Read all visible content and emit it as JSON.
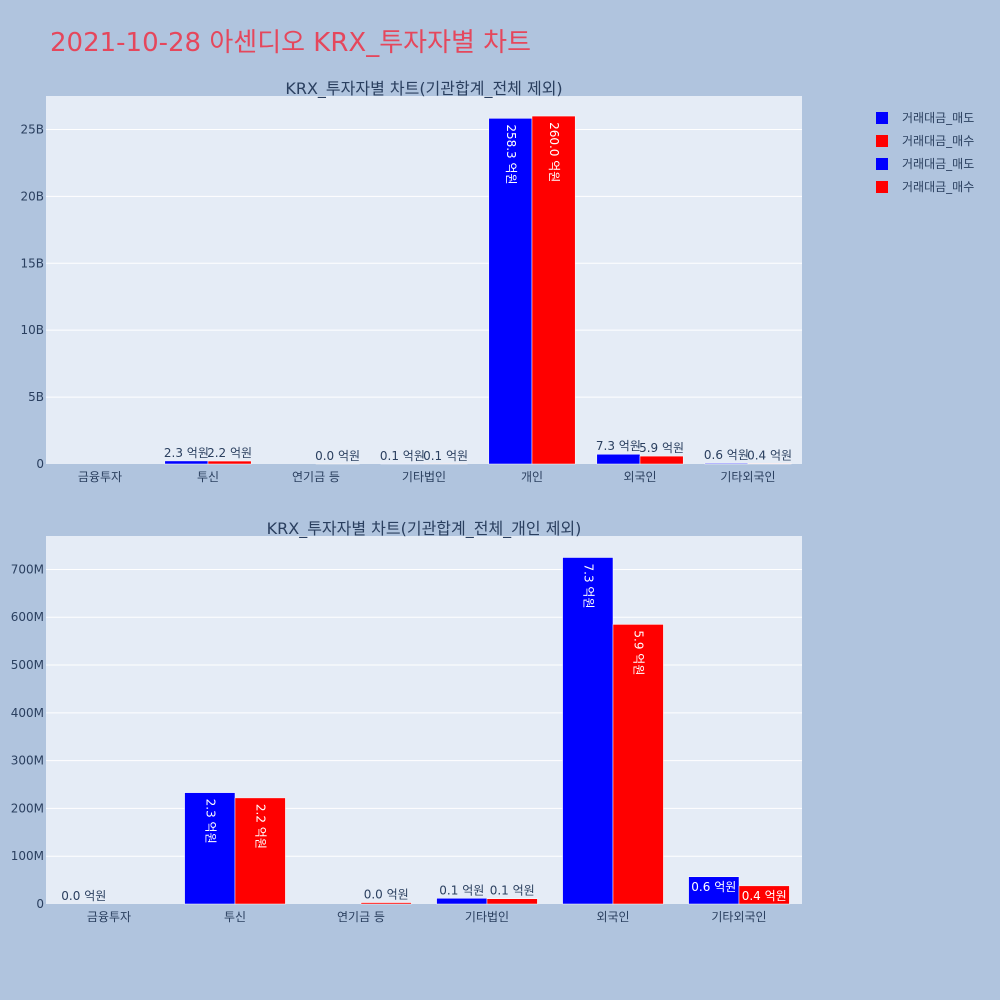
{
  "page": {
    "title": "2021-10-28 아센디오 KRX_투자자별 차트"
  },
  "colors": {
    "sell": "#0000ff",
    "buy": "#ff0000",
    "plot_bg": "#e5ecf6",
    "grid": "#ffffff",
    "text": "#2a3f5f"
  },
  "legend": {
    "items": [
      {
        "label": "거래대금_매도",
        "color": "#0000ff"
      },
      {
        "label": "거래대금_매수",
        "color": "#ff0000"
      },
      {
        "label": "거래대금_매도",
        "color": "#0000ff"
      },
      {
        "label": "거래대금_매수",
        "color": "#ff0000"
      }
    ]
  },
  "chart_data": [
    {
      "type": "bar",
      "title": "KRX_투자자별 차트(기관합계_전체 제외)",
      "categories": [
        "금융투자",
        "투신",
        "연기금 등",
        "기타법인",
        "개인",
        "외국인",
        "기타외국인"
      ],
      "ylim": [
        0,
        27500000000
      ],
      "yticks": [
        0,
        5000000000,
        10000000000,
        15000000000,
        20000000000,
        25000000000
      ],
      "ytick_labels": [
        "0",
        "5B",
        "10B",
        "15B",
        "20B",
        "25B"
      ],
      "grid": true,
      "series": [
        {
          "name": "거래대금_매도",
          "color": "#0000ff",
          "values": [
            0,
            230000000,
            0,
            10000000,
            25830000000,
            730000000,
            60000000
          ],
          "labels": [
            "",
            "2.3 억원",
            "",
            "0.1 억원",
            "258.3 억원",
            "7.3 억원",
            "0.6 억원"
          ]
        },
        {
          "name": "거래대금_매수",
          "color": "#ff0000",
          "values": [
            0,
            220000000,
            3000000,
            10000000,
            26000000000,
            590000000,
            40000000
          ],
          "labels": [
            "",
            "2.2 억원",
            "0.0 억원",
            "0.1 억원",
            "260.0 억원",
            "5.9 억원",
            "0.4 억원"
          ]
        }
      ]
    },
    {
      "type": "bar",
      "title": "KRX_투자자별 차트(기관합계_전체_개인 제외)",
      "categories": [
        "금융투자",
        "투신",
        "연기금 등",
        "기타법인",
        "외국인",
        "기타외국인"
      ],
      "ylim": [
        0,
        770000000
      ],
      "yticks": [
        0,
        100000000,
        200000000,
        300000000,
        400000000,
        500000000,
        600000000,
        700000000
      ],
      "ytick_labels": [
        "0",
        "100M",
        "200M",
        "300M",
        "400M",
        "500M",
        "600M",
        "700M"
      ],
      "grid": true,
      "series": [
        {
          "name": "거래대금_매도",
          "color": "#0000ff",
          "values": [
            0,
            233000000,
            0,
            12000000,
            725000000,
            57000000
          ],
          "labels": [
            "0.0 억원",
            "2.3 억원",
            "",
            "0.1 억원",
            "7.3 억원",
            "0.6 억원"
          ]
        },
        {
          "name": "거래대금_매수",
          "color": "#ff0000",
          "values": [
            0,
            222000000,
            3000000,
            11000000,
            585000000,
            38000000
          ],
          "labels": [
            "",
            "2.2 억원",
            "0.0 억원",
            "0.1 억원",
            "5.9 억원",
            "0.4 억원"
          ]
        }
      ]
    }
  ]
}
